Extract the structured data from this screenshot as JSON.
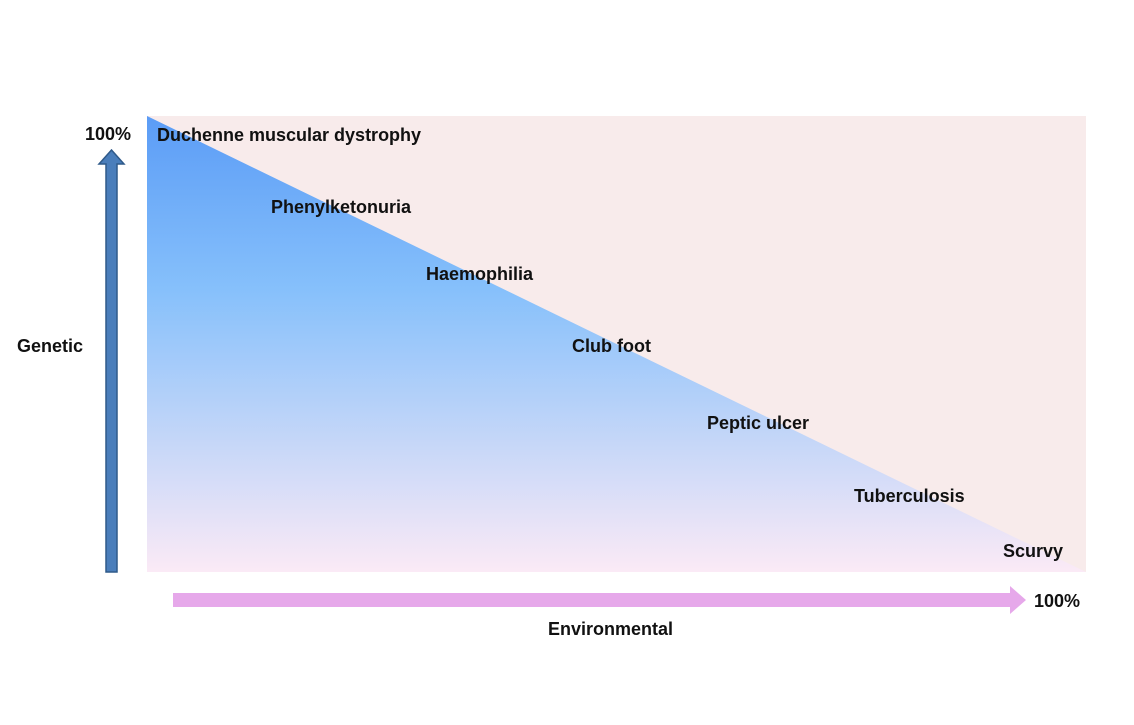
{
  "axes": {
    "genetic_label": "Genetic",
    "genetic_max_label": "100%",
    "environmental_label": "Environmental",
    "environmental_max_label": "100%"
  },
  "diseases": [
    {
      "name": "Duchenne muscular dystrophy"
    },
    {
      "name": "Phenylketonuria"
    },
    {
      "name": "Haemophilia"
    },
    {
      "name": "Club foot"
    },
    {
      "name": "Peptic ulcer"
    },
    {
      "name": "Tuberculosis"
    },
    {
      "name": "Scurvy"
    }
  ],
  "colors": {
    "background_panel": "#f8ebeb",
    "genetic_gradient_top": "#5b9cf6",
    "genetic_gradient_mid": "#86c0fb",
    "genetic_gradient_bottom": "#fbeaf6",
    "genetic_arrow_fill": "#4a7ebb",
    "genetic_arrow_stroke": "#2f5a8a",
    "environmental_arrow_fill": "#e6a8ea"
  }
}
